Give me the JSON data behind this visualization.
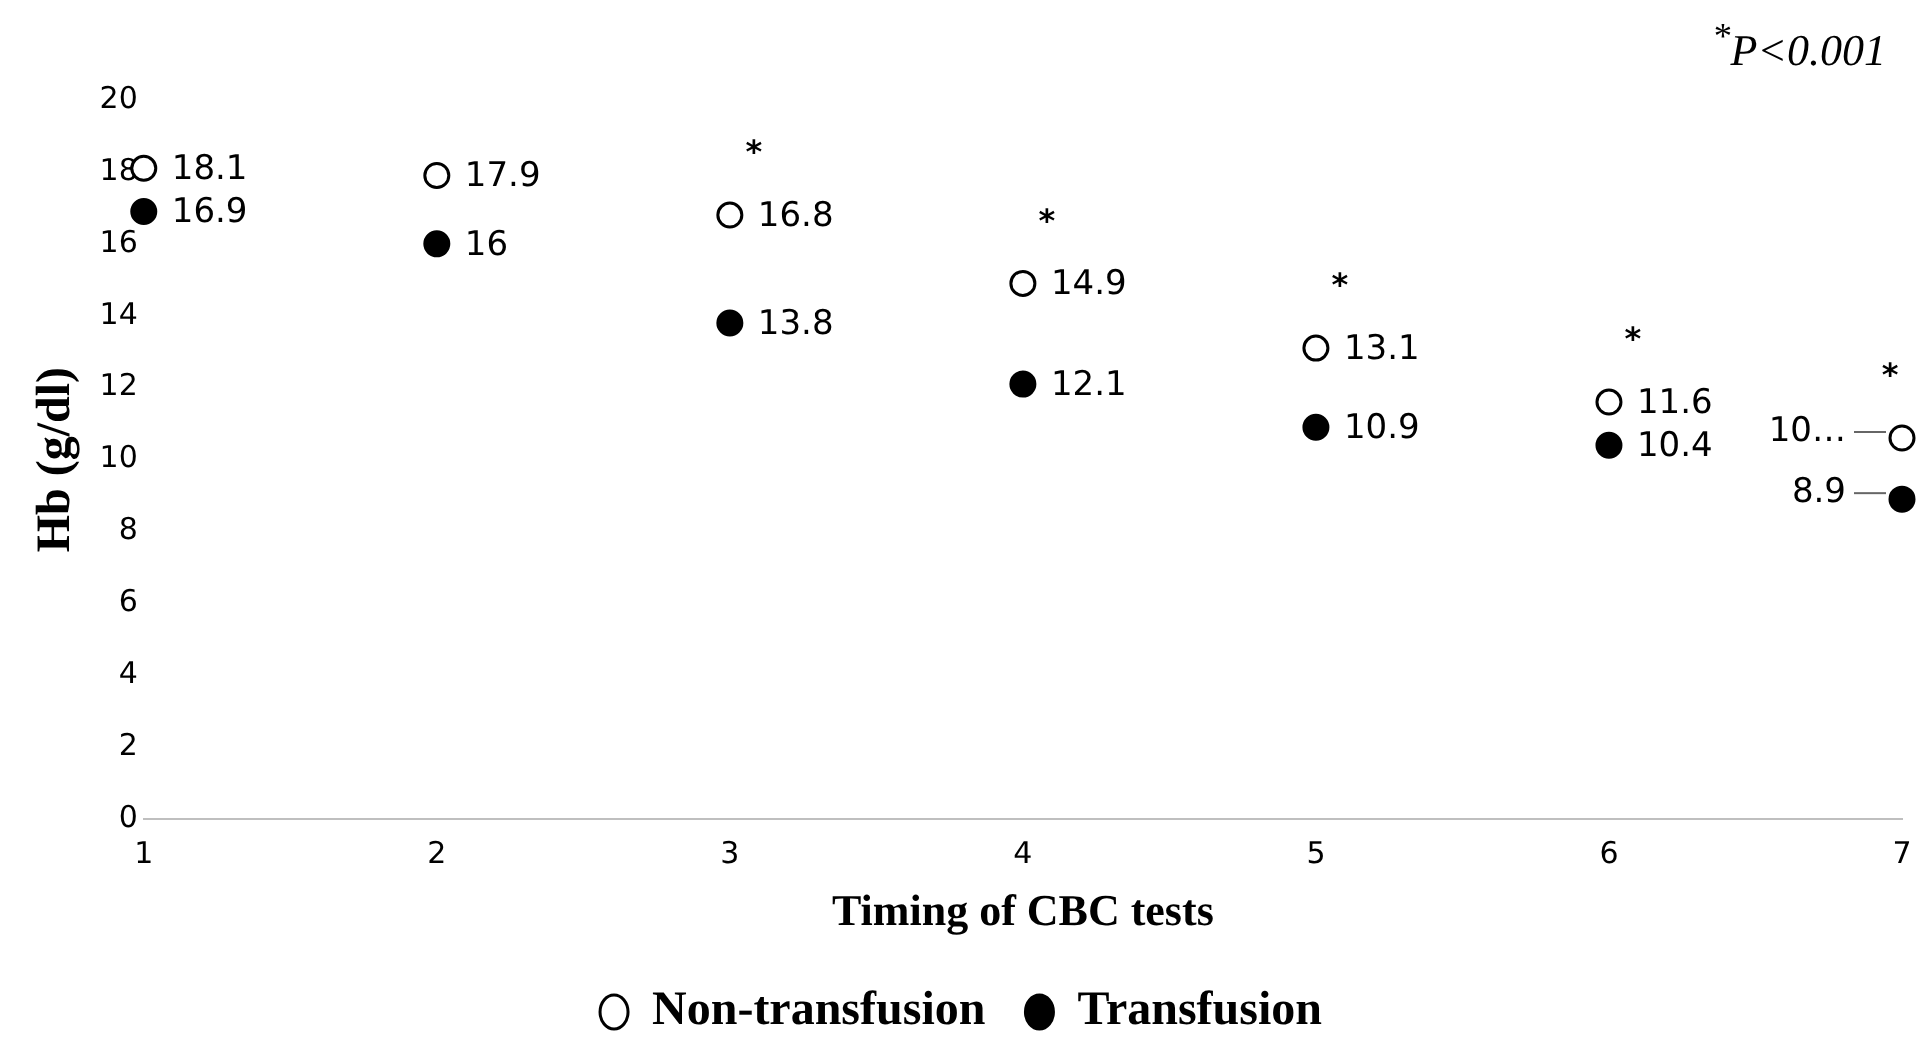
{
  "chart_data": {
    "type": "scatter",
    "xlabel": "Timing of CBC tests",
    "ylabel": "Hb (g/dl)",
    "x": [
      1,
      2,
      3,
      4,
      5,
      6,
      7
    ],
    "series": [
      {
        "name": "Non-transfusion",
        "color": "#ffffff",
        "values": [
          18.1,
          17.9,
          16.8,
          14.9,
          13.1,
          11.6,
          10.6
        ],
        "value_labels": [
          "18.1",
          "17.9",
          "16.8",
          "14.9",
          "13.1",
          "11.6",
          "10…"
        ]
      },
      {
        "name": "Transfusion",
        "color": "#000000",
        "values": [
          16.9,
          16,
          13.8,
          12.1,
          10.9,
          10.4,
          8.9
        ],
        "value_labels": [
          "16.9",
          "16",
          "13.8",
          "12.1",
          "10.9",
          "10.4",
          "8.9"
        ]
      }
    ],
    "xlim": [
      1,
      7
    ],
    "xticks": [
      1,
      2,
      3,
      4,
      5,
      6,
      7
    ],
    "ylim": [
      0,
      20
    ],
    "yticks": [
      0,
      2,
      4,
      6,
      8,
      10,
      12,
      14,
      16,
      18,
      20
    ],
    "grid": false,
    "legend": "bottom",
    "marker": "circle",
    "annotations": [
      "$^{*}$P<0.001",
      {
        "text": "*",
        "x": 3,
        "y": 16.8
      },
      {
        "text": "*",
        "x": 4,
        "y": 14.9
      },
      {
        "text": "*",
        "x": 5,
        "y": 13.1
      },
      {
        "text": "*",
        "x": 6,
        "y": 11.6
      },
      {
        "text": "*",
        "x": 7,
        "y": 10.6
      }
    ]
  }
}
